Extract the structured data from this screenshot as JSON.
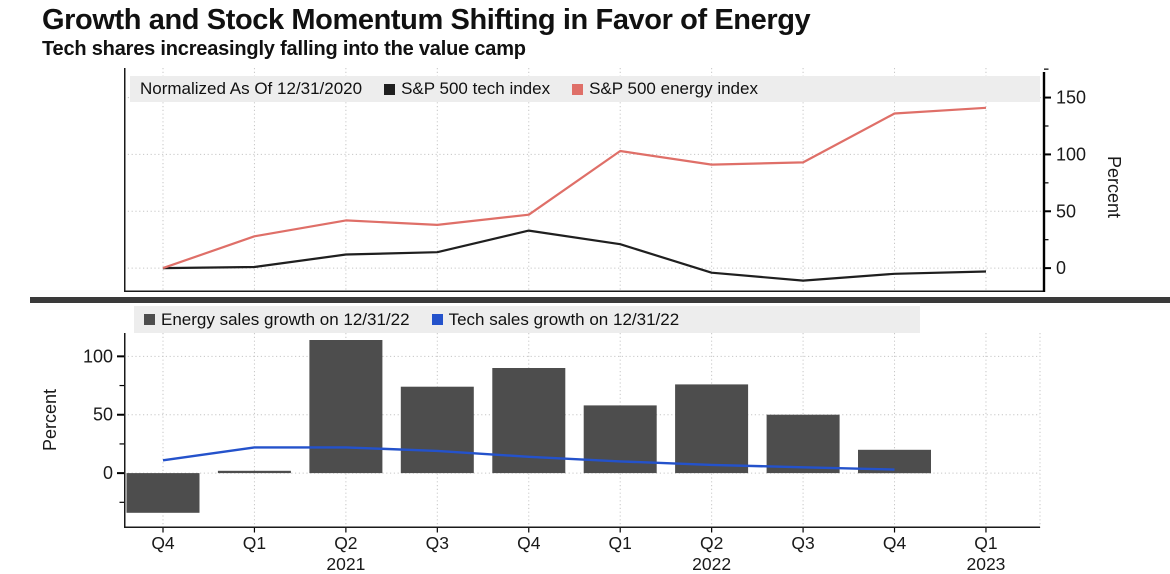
{
  "header": {
    "title": "Growth and Stock Momentum Shifting in Favor of Energy",
    "subtitle": "Tech shares increasingly falling into the value camp"
  },
  "colors": {
    "tech_index_line": "#1f1f1f",
    "energy_index_line": "#df6f68",
    "energy_sales_bar": "#4d4d4d",
    "tech_sales_line": "#2452cb",
    "legend_bg": "#ededed",
    "grid": "#c6c6c6",
    "axis": "#000000",
    "separator": "#3a3a3a"
  },
  "chart_data": [
    {
      "type": "line",
      "panel": "top",
      "note": "Normalized As Of 12/31/2020",
      "categories": [
        "Q4 2020",
        "Q1 2021",
        "Q2 2021",
        "Q3 2021",
        "Q4 2021",
        "Q1 2022",
        "Q2 2022",
        "Q3 2022",
        "Q4 2022",
        "Q1 2023"
      ],
      "series": [
        {
          "name": "S&P 500 tech index",
          "color": "#1f1f1f",
          "values": [
            0,
            1,
            12,
            14,
            33,
            21,
            -4,
            -11,
            -5,
            -3
          ]
        },
        {
          "name": "S&P 500 energy index",
          "color": "#df6f68",
          "values": [
            0,
            28,
            42,
            38,
            47,
            103,
            91,
            93,
            136,
            141
          ]
        }
      ],
      "ylabel": "Percent",
      "ylim": [
        -21,
        176
      ],
      "yticks": [
        0,
        50,
        100,
        150
      ],
      "y_minor_step": 25,
      "axis_side": "right",
      "grid": true,
      "legend_position": "top-left"
    },
    {
      "type": "bar+line",
      "panel": "bottom",
      "categories": [
        "Q4",
        "Q1",
        "Q2",
        "Q3",
        "Q4",
        "Q1",
        "Q2",
        "Q3",
        "Q4",
        "Q1"
      ],
      "year_rows": [
        {
          "index": 2,
          "label": "2021"
        },
        {
          "index": 6,
          "label": "2022"
        },
        {
          "index": 9,
          "label": "2023"
        }
      ],
      "series": [
        {
          "name": "Energy sales growth on 12/31/22",
          "kind": "bar",
          "color": "#4d4d4d",
          "values": [
            -34,
            2,
            114,
            74,
            90,
            58,
            76,
            50,
            20,
            null
          ]
        },
        {
          "name": "Tech sales growth on 12/31/22",
          "kind": "line",
          "color": "#2452cb",
          "values": [
            11,
            22,
            22,
            19,
            14,
            10,
            7,
            5,
            3,
            null
          ]
        }
      ],
      "ylabel": "Percent",
      "ylim": [
        -47,
        120
      ],
      "yticks": [
        0,
        50,
        100
      ],
      "y_minor_step": 25,
      "axis_side": "left",
      "grid": true,
      "legend_position": "top-left"
    }
  ]
}
